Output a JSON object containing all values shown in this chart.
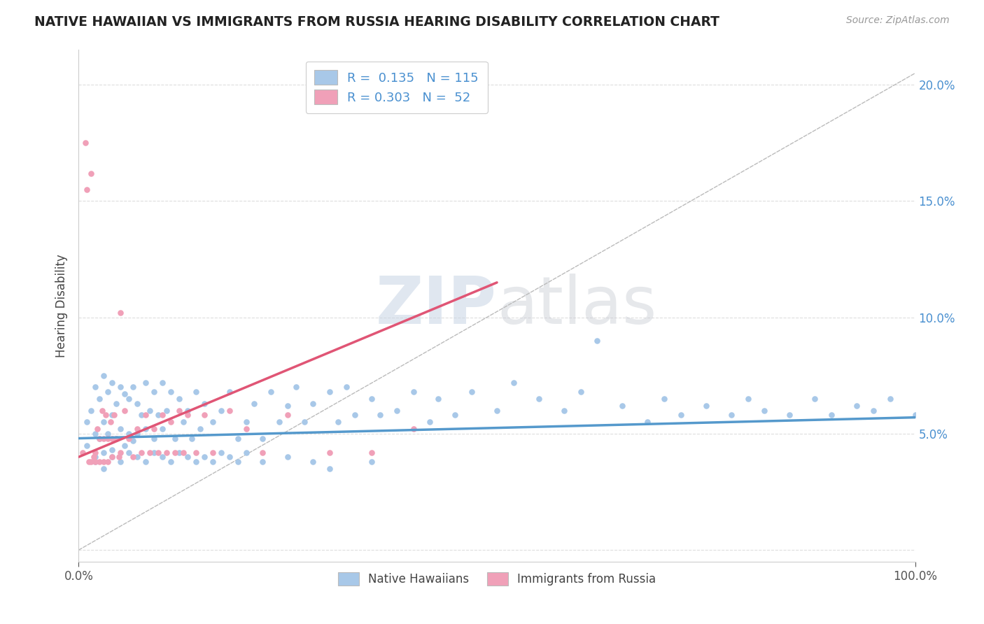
{
  "title": "NATIVE HAWAIIAN VS IMMIGRANTS FROM RUSSIA HEARING DISABILITY CORRELATION CHART",
  "source_text": "Source: ZipAtlas.com",
  "ylabel": "Hearing Disability",
  "x_min": 0.0,
  "x_max": 1.0,
  "y_min": -0.005,
  "y_max": 0.215,
  "blue_color": "#a8c8e8",
  "pink_color": "#f0a0b8",
  "blue_line_color": "#5599cc",
  "pink_line_color": "#e05575",
  "ref_line_color": "#bbbbbb",
  "watermark_color": "#d0d8e8",
  "blue_trend_x": [
    0.0,
    1.0
  ],
  "blue_trend_y": [
    0.048,
    0.057
  ],
  "pink_trend_x": [
    0.0,
    0.5
  ],
  "pink_trend_y": [
    0.04,
    0.115
  ],
  "ref_line_x": [
    0.0,
    1.0
  ],
  "ref_line_y": [
    0.0,
    0.205
  ],
  "blue_scatter_x": [
    0.01,
    0.01,
    0.015,
    0.02,
    0.02,
    0.02,
    0.025,
    0.025,
    0.03,
    0.03,
    0.03,
    0.035,
    0.035,
    0.04,
    0.04,
    0.04,
    0.045,
    0.045,
    0.05,
    0.05,
    0.055,
    0.055,
    0.06,
    0.06,
    0.065,
    0.065,
    0.07,
    0.07,
    0.075,
    0.08,
    0.08,
    0.085,
    0.09,
    0.09,
    0.095,
    0.1,
    0.1,
    0.105,
    0.11,
    0.115,
    0.12,
    0.125,
    0.13,
    0.135,
    0.14,
    0.145,
    0.15,
    0.16,
    0.17,
    0.18,
    0.19,
    0.2,
    0.21,
    0.22,
    0.23,
    0.24,
    0.25,
    0.26,
    0.27,
    0.28,
    0.3,
    0.31,
    0.32,
    0.33,
    0.35,
    0.36,
    0.38,
    0.4,
    0.42,
    0.43,
    0.45,
    0.47,
    0.5,
    0.52,
    0.55,
    0.58,
    0.6,
    0.62,
    0.65,
    0.68,
    0.7,
    0.72,
    0.75,
    0.78,
    0.8,
    0.82,
    0.85,
    0.88,
    0.9,
    0.93,
    0.95,
    0.97,
    1.0,
    0.02,
    0.03,
    0.04,
    0.05,
    0.06,
    0.07,
    0.08,
    0.09,
    0.1,
    0.11,
    0.12,
    0.13,
    0.14,
    0.15,
    0.16,
    0.17,
    0.18,
    0.19,
    0.2,
    0.22,
    0.25,
    0.28,
    0.3,
    0.35
  ],
  "blue_scatter_y": [
    0.055,
    0.045,
    0.06,
    0.07,
    0.05,
    0.04,
    0.065,
    0.048,
    0.075,
    0.055,
    0.042,
    0.068,
    0.05,
    0.072,
    0.058,
    0.043,
    0.063,
    0.048,
    0.07,
    0.052,
    0.067,
    0.045,
    0.065,
    0.05,
    0.07,
    0.047,
    0.063,
    0.05,
    0.058,
    0.072,
    0.052,
    0.06,
    0.068,
    0.048,
    0.058,
    0.072,
    0.052,
    0.06,
    0.068,
    0.048,
    0.065,
    0.055,
    0.06,
    0.048,
    0.068,
    0.052,
    0.063,
    0.055,
    0.06,
    0.068,
    0.048,
    0.055,
    0.063,
    0.048,
    0.068,
    0.055,
    0.062,
    0.07,
    0.055,
    0.063,
    0.068,
    0.055,
    0.07,
    0.058,
    0.065,
    0.058,
    0.06,
    0.068,
    0.055,
    0.065,
    0.058,
    0.068,
    0.06,
    0.072,
    0.065,
    0.06,
    0.068,
    0.09,
    0.062,
    0.055,
    0.065,
    0.058,
    0.062,
    0.058,
    0.065,
    0.06,
    0.058,
    0.065,
    0.058,
    0.062,
    0.06,
    0.065,
    0.058,
    0.038,
    0.035,
    0.04,
    0.038,
    0.042,
    0.04,
    0.038,
    0.042,
    0.04,
    0.038,
    0.042,
    0.04,
    0.038,
    0.04,
    0.038,
    0.042,
    0.04,
    0.038,
    0.042,
    0.038,
    0.04,
    0.038,
    0.035,
    0.038
  ],
  "pink_scatter_x": [
    0.005,
    0.008,
    0.01,
    0.012,
    0.015,
    0.015,
    0.018,
    0.02,
    0.02,
    0.022,
    0.025,
    0.025,
    0.028,
    0.03,
    0.03,
    0.032,
    0.035,
    0.035,
    0.038,
    0.04,
    0.04,
    0.042,
    0.045,
    0.048,
    0.05,
    0.05,
    0.055,
    0.06,
    0.065,
    0.07,
    0.075,
    0.08,
    0.085,
    0.09,
    0.095,
    0.1,
    0.105,
    0.11,
    0.115,
    0.12,
    0.125,
    0.13,
    0.14,
    0.15,
    0.16,
    0.18,
    0.2,
    0.22,
    0.25,
    0.3,
    0.35,
    0.4
  ],
  "pink_scatter_y": [
    0.042,
    0.175,
    0.155,
    0.038,
    0.162,
    0.038,
    0.04,
    0.042,
    0.038,
    0.052,
    0.048,
    0.038,
    0.06,
    0.048,
    0.038,
    0.058,
    0.048,
    0.038,
    0.055,
    0.048,
    0.04,
    0.058,
    0.048,
    0.04,
    0.102,
    0.042,
    0.06,
    0.048,
    0.04,
    0.052,
    0.042,
    0.058,
    0.042,
    0.052,
    0.042,
    0.058,
    0.042,
    0.055,
    0.042,
    0.06,
    0.042,
    0.058,
    0.042,
    0.058,
    0.042,
    0.06,
    0.052,
    0.042,
    0.058,
    0.042,
    0.042,
    0.052
  ]
}
